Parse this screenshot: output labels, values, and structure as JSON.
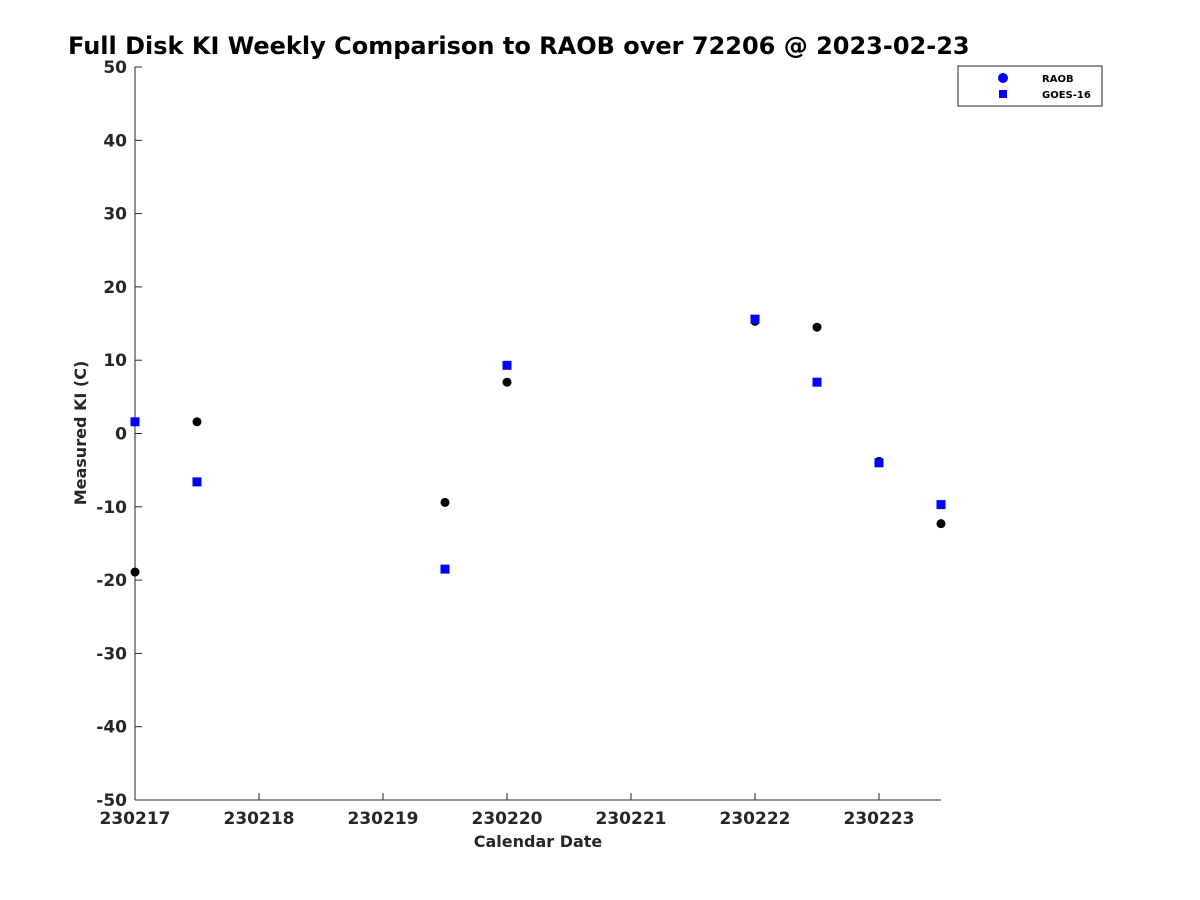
{
  "chart_data": {
    "type": "scatter",
    "title": "Full Disk KI Weekly Comparison to RAOB over 72206 @ 2023-02-23",
    "xlabel": "Calendar Date",
    "ylabel": "Measured KI (C)",
    "x_tick_labels": [
      "230217",
      "230218",
      "230219",
      "230220",
      "230221",
      "230222",
      "230223"
    ],
    "x_ticks": [
      "2023-02-17",
      "2023-02-18",
      "2023-02-19",
      "2023-02-20",
      "2023-02-21",
      "2023-02-22",
      "2023-02-23"
    ],
    "xlim": [
      "2023-02-17T00:00",
      "2023-02-23T12:00"
    ],
    "ylim": [
      -50,
      50
    ],
    "y_ticks": [
      50,
      40,
      30,
      20,
      10,
      0,
      -10,
      -20,
      -30,
      -40,
      -50
    ],
    "grid": false,
    "legend_position": "top-right",
    "series": [
      {
        "name": "RAOB",
        "marker": "circle",
        "color": "#000000",
        "legend_color": "#0000ff",
        "points": [
          {
            "x": "2023-02-17T00:00",
            "y": -18.9
          },
          {
            "x": "2023-02-17T12:00",
            "y": 1.6
          },
          {
            "x": "2023-02-19T12:00",
            "y": -9.4
          },
          {
            "x": "2023-02-20T00:00",
            "y": 7.0
          },
          {
            "x": "2023-02-22T00:00",
            "y": 15.3
          },
          {
            "x": "2023-02-22T12:00",
            "y": 14.5
          },
          {
            "x": "2023-02-23T00:00",
            "y": -3.8
          },
          {
            "x": "2023-02-23T12:00",
            "y": -12.3
          }
        ]
      },
      {
        "name": "GOES-16",
        "marker": "square",
        "color": "#0000ff",
        "legend_color": "#0000ff",
        "points": [
          {
            "x": "2023-02-17T00:00",
            "y": 1.6
          },
          {
            "x": "2023-02-17T12:00",
            "y": -6.6
          },
          {
            "x": "2023-02-19T12:00",
            "y": -18.5
          },
          {
            "x": "2023-02-20T00:00",
            "y": 9.3
          },
          {
            "x": "2023-02-22T00:00",
            "y": 15.6
          },
          {
            "x": "2023-02-22T12:00",
            "y": 7.0
          },
          {
            "x": "2023-02-23T00:00",
            "y": -4.0
          },
          {
            "x": "2023-02-23T12:00",
            "y": -9.7
          }
        ]
      }
    ]
  }
}
